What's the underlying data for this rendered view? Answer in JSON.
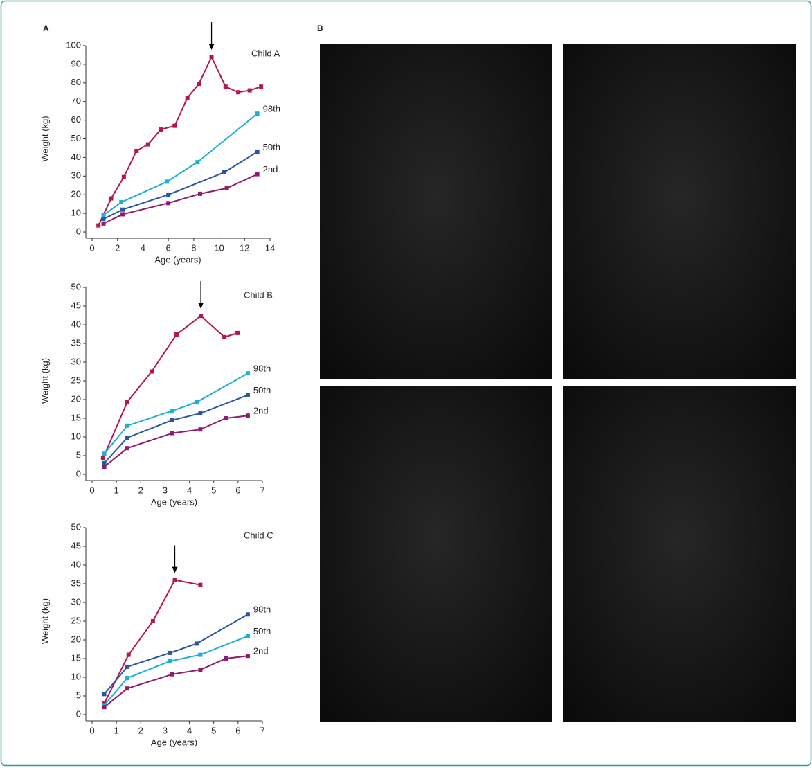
{
  "panel_labels": [
    "A",
    "B"
  ],
  "chart_data": [
    {
      "type": "line",
      "title": "Child A",
      "x_label": "Age (years)",
      "y_label": "Weight (kg)",
      "xlim": [
        0,
        14
      ],
      "xticks": [
        0,
        2,
        4,
        6,
        8,
        10,
        12,
        14
      ],
      "ylim": [
        0,
        100
      ],
      "yticks": [
        0,
        10,
        20,
        30,
        40,
        50,
        60,
        70,
        80,
        90,
        100
      ],
      "series": [
        {
          "name": "Child A",
          "color": "#b5174b",
          "x": [
            0.5,
            1.5,
            2.5,
            3.5,
            4.4,
            5.4,
            6.5,
            7.5,
            8.4,
            9.4,
            10.5,
            11.5,
            12.4,
            13.3
          ],
          "values": [
            3.5,
            18,
            29.5,
            43.5,
            47,
            55,
            57,
            72,
            79.5,
            94,
            78,
            75,
            76,
            78
          ]
        },
        {
          "name": "98th",
          "color": "#1bb0d2",
          "x": [
            0.9,
            2.3,
            5.9,
            8.3,
            13
          ],
          "values": [
            9,
            16,
            27,
            37.5,
            63.5
          ]
        },
        {
          "name": "50th",
          "color": "#2b559e",
          "x": [
            0.9,
            2.4,
            6,
            10.4,
            13
          ],
          "values": [
            7,
            12,
            20,
            32,
            43
          ]
        },
        {
          "name": "2nd",
          "color": "#8e1c6c",
          "x": [
            0.9,
            2.4,
            6,
            8.5,
            10.6,
            13
          ],
          "values": [
            4.5,
            9.5,
            15.5,
            20.5,
            23.5,
            31
          ]
        }
      ]
    },
    {
      "type": "line",
      "title": "Child B",
      "x_label": "Age (years)",
      "y_label": "Weight (kg)",
      "xlim": [
        0,
        7
      ],
      "xticks": [
        0,
        1,
        2,
        3,
        4,
        5,
        6,
        7
      ],
      "ylim": [
        0,
        50
      ],
      "yticks": [
        0,
        5,
        10,
        15,
        20,
        25,
        30,
        35,
        40,
        45,
        50
      ],
      "series": [
        {
          "name": "Child B",
          "color": "#b5174b",
          "x": [
            0.45,
            1.45,
            2.45,
            3.47,
            4.47,
            5.44,
            5.98
          ],
          "values": [
            4.3,
            19.4,
            27.5,
            37.4,
            42.4,
            36.7,
            37.8
          ]
        },
        {
          "name": "98th",
          "color": "#1bb0d2",
          "x": [
            0.5,
            1.45,
            3.3,
            4.3,
            6.4
          ],
          "values": [
            5.5,
            13,
            17,
            19.3,
            27
          ]
        },
        {
          "name": "50th",
          "color": "#2b559e",
          "x": [
            0.5,
            1.45,
            3.3,
            4.45,
            6.4
          ],
          "values": [
            3,
            9.8,
            14.5,
            16.3,
            21.2
          ]
        },
        {
          "name": "2nd",
          "color": "#8e1c6c",
          "x": [
            0.5,
            1.45,
            3.3,
            4.45,
            5.5,
            6.4
          ],
          "values": [
            2,
            7,
            11,
            12,
            15,
            15.7
          ]
        }
      ]
    },
    {
      "type": "line",
      "title": "Child C",
      "x_label": "Age (years)",
      "y_label": "Weight (kg)",
      "xlim": [
        0,
        7
      ],
      "xticks": [
        0,
        1,
        2,
        3,
        4,
        5,
        6,
        7
      ],
      "ylim": [
        0,
        50
      ],
      "yticks": [
        0,
        5,
        10,
        15,
        20,
        25,
        30,
        35,
        40,
        45,
        50
      ],
      "series": [
        {
          "name": "Child C",
          "color": "#b5174b",
          "x": [
            0.5,
            1.5,
            2.5,
            3.4,
            4.45
          ],
          "values": [
            3,
            16,
            25,
            36,
            34.7
          ]
        },
        {
          "name": "98th",
          "color": "#2b559e",
          "x": [
            0.5,
            1.45,
            3.2,
            4.3,
            6.4
          ],
          "values": [
            5.5,
            12.8,
            16.5,
            19,
            26.8
          ]
        },
        {
          "name": "50th",
          "color": "#1bb0d2",
          "x": [
            0.5,
            1.45,
            3.2,
            4.45,
            6.4
          ],
          "values": [
            2.5,
            9.8,
            14.3,
            16,
            21
          ]
        },
        {
          "name": "2nd",
          "color": "#8e1c6c",
          "x": [
            0.5,
            1.45,
            3.3,
            4.45,
            5.5,
            6.4
          ],
          "values": [
            2,
            7,
            10.8,
            12,
            15,
            15.7
          ]
        }
      ]
    }
  ]
}
